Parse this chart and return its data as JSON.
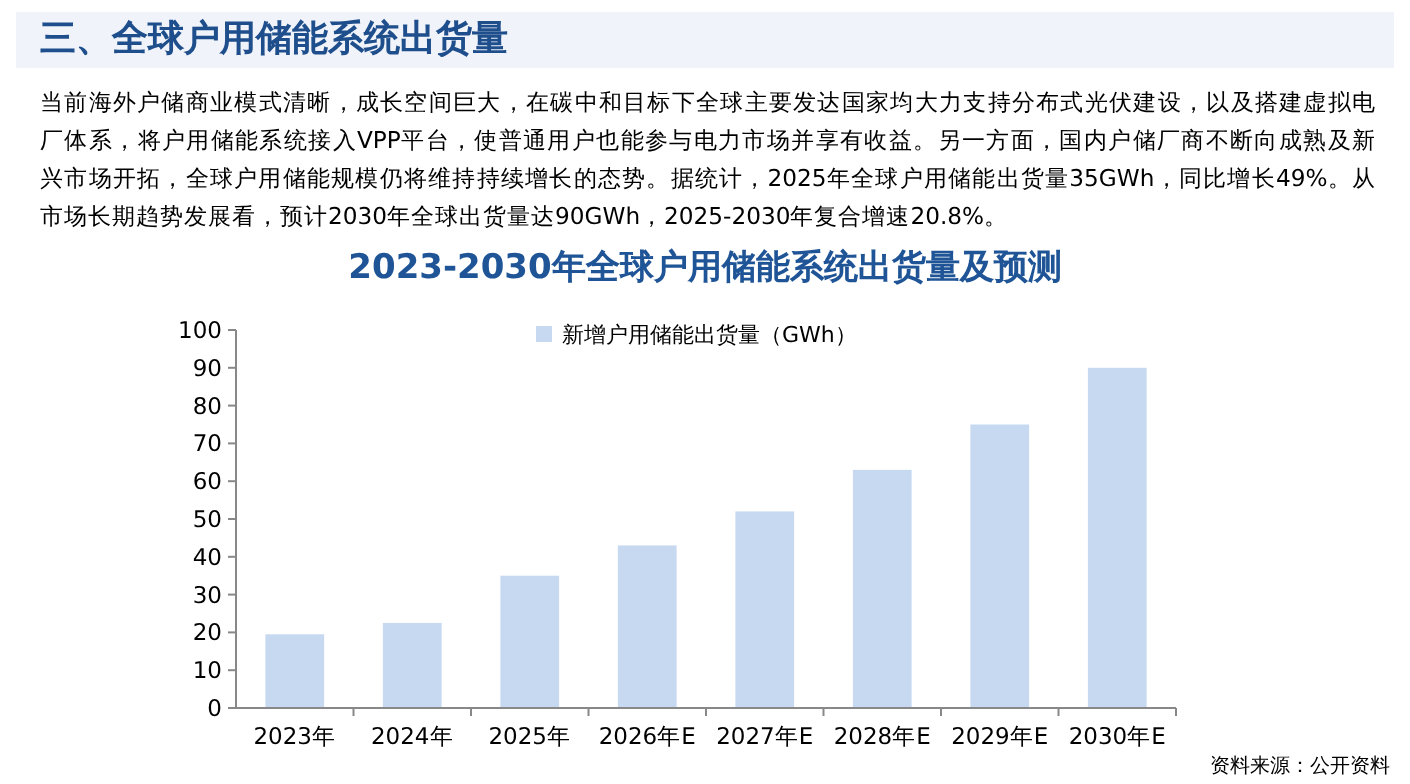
{
  "chart_data": {
    "type": "bar",
    "title": "2023-2030年全球户用储能系统出货量及预测",
    "subtitle": "当前海外户储商业模式清晰，成长空间巨大，在碳中和目标下全球主要发达国家均大力支持分布式光伏建设，以及搭建虚拟电厂体系，将户用储能系统接入VPP平台，使普通用户也能参与电力市场并享有收益。另一方面，国内户储厂商不断向成熟及新兴市场开拓，全球户用储能规模仍将维持持续增长的态势。据统计，2025年全球户用储能出货量35GWh，同比增长49%。从市场长期趋势发展看，预计2030年全球出货量达90GWh，2025-2030年复合增速20.8%。",
    "annotations": [
      "三、全球户用储能系统出货量",
      "资料来源：公开资料"
    ],
    "categories": [
      "2023年",
      "2024年",
      "2025年",
      "2026年E",
      "2027年E",
      "2028年E",
      "2029年E",
      "2030年E"
    ],
    "series": [
      {
        "name": "新增户用储能出货量（GWh）",
        "color": "#c6d9f1",
        "values": [
          19.5,
          22.5,
          35,
          43,
          52,
          63,
          75,
          90
        ]
      }
    ],
    "ylim": [
      0,
      100
    ],
    "yticks": [
      0,
      10,
      20,
      30,
      40,
      50,
      60,
      70,
      80,
      90,
      100
    ],
    "grid": false,
    "legend": "top"
  }
}
